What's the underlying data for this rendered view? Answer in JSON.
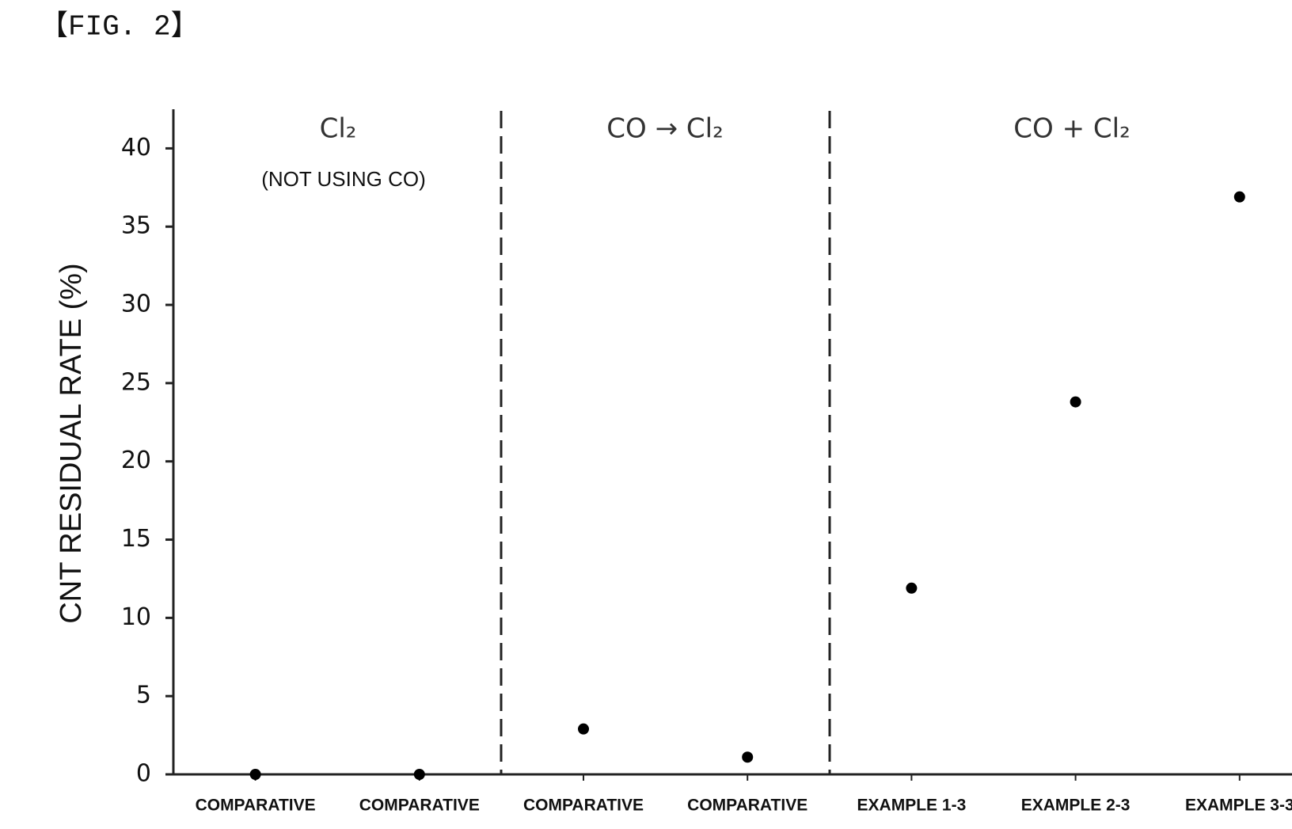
{
  "figure_label": "【FIG. 2】",
  "chart_data": {
    "type": "scatter",
    "ylabel": "CNT RESIDUAL RATE (%)",
    "groups": [
      "Cl₂",
      "CO → Cl₂",
      "CO + Cl₂"
    ],
    "group_note": "(NOT USING CO)",
    "categories": [
      "COMPARATIVE",
      "COMPARATIVE",
      "COMPARATIVE",
      "COMPARATIVE",
      "EXAMPLE 1-3",
      "EXAMPLE 2-3",
      "EXAMPLE 3-3"
    ],
    "values": [
      0,
      0,
      2.9,
      1.1,
      11.9,
      23.8,
      36.9
    ],
    "color": "#000000",
    "ylim": [
      0,
      42.5
    ],
    "yticks": [
      0,
      5,
      10,
      15,
      20,
      25,
      30,
      35,
      40
    ]
  }
}
